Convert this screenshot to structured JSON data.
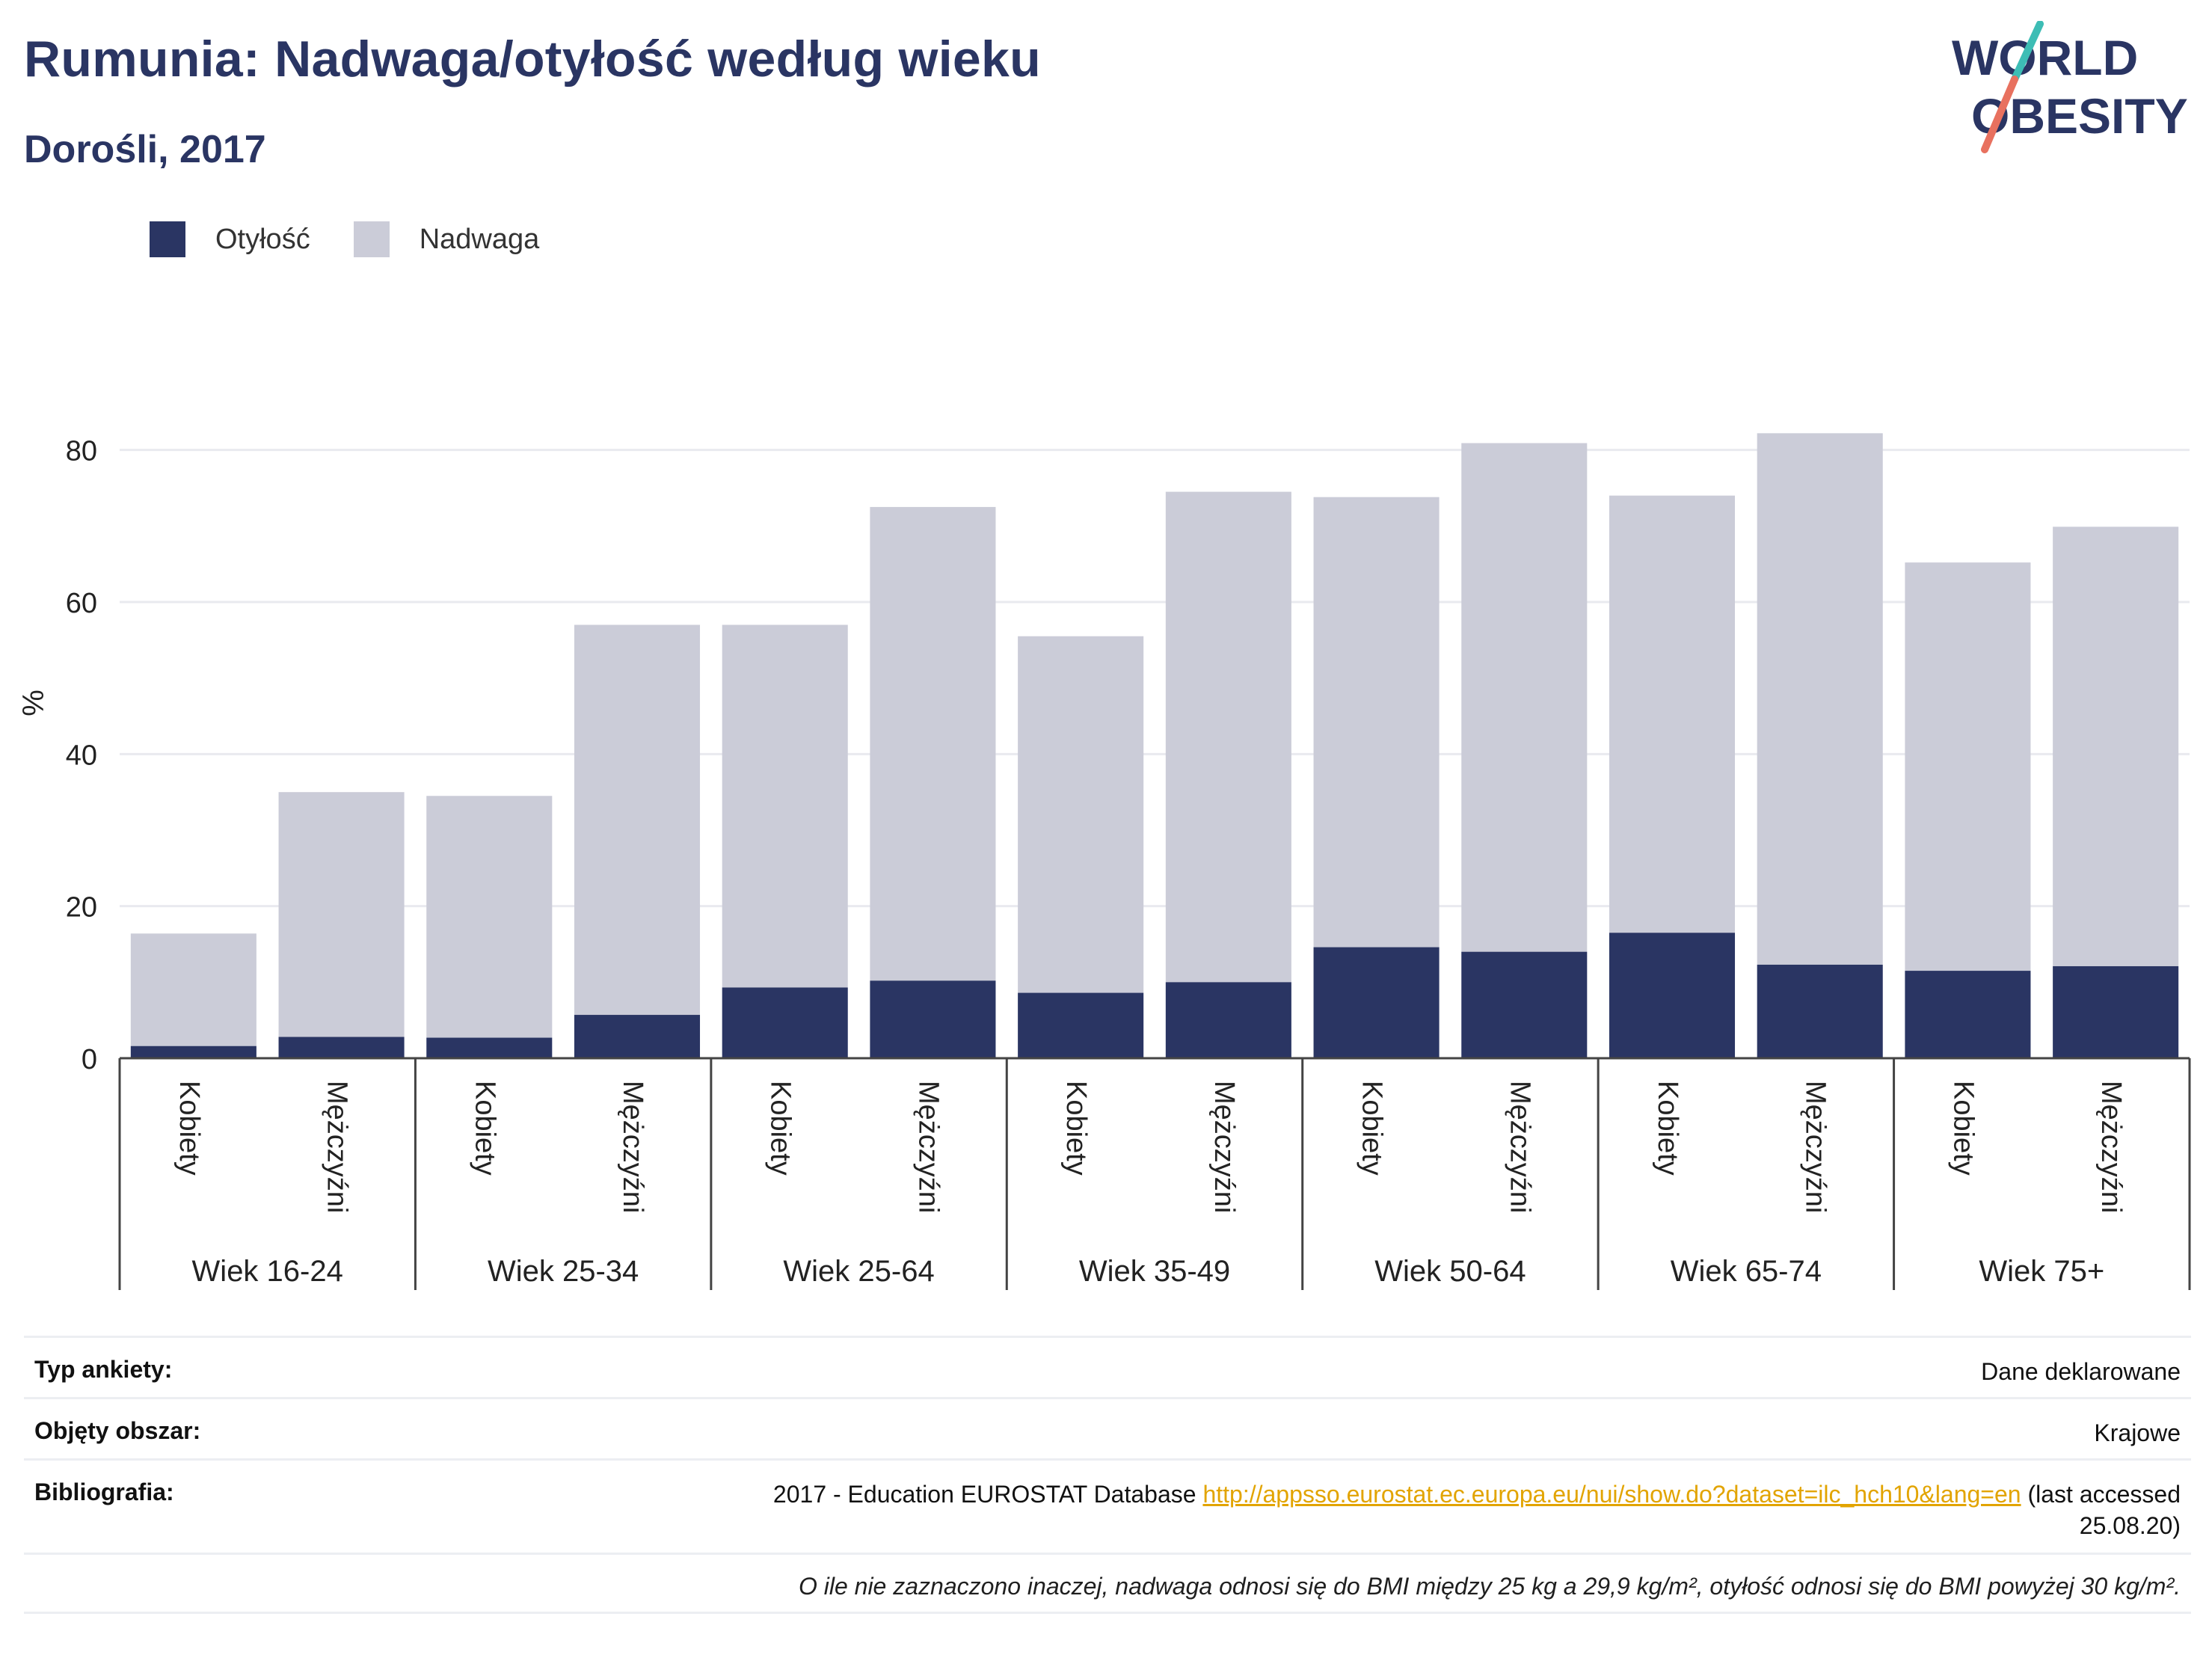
{
  "title": "Rumunia: Nadwaga/otyłość według wieku",
  "subtitle": "Dorośli, 2017",
  "logo": {
    "line1": "WORLD",
    "line2": "OBESITY",
    "colors": {
      "text": "#2a3563",
      "slash_teal": "#3dbdb5",
      "slash_coral": "#e8715f"
    }
  },
  "chart_data": {
    "type": "bar",
    "stacked": true,
    "ylabel": "%",
    "ylim": [
      0,
      90
    ],
    "yticks": [
      0,
      20,
      40,
      60,
      80
    ],
    "grid": true,
    "legend_position": "top-left",
    "groups": [
      "Wiek 16-24",
      "Wiek 25-34",
      "Wiek 25-64",
      "Wiek 35-49",
      "Wiek 50-64",
      "Wiek 65-74",
      "Wiek 75+"
    ],
    "subcategories": [
      "Kobiety",
      "Mężczyźni"
    ],
    "categories": [
      "Kobiety",
      "Mężczyźni",
      "Kobiety",
      "Mężczyźni",
      "Kobiety",
      "Mężczyźni",
      "Kobiety",
      "Mężczyźni",
      "Kobiety",
      "Mężczyźni",
      "Kobiety",
      "Mężczyźni",
      "Kobiety",
      "Mężczyźni"
    ],
    "series": [
      {
        "name": "Otyłość",
        "color": "#2a3563",
        "values": [
          1.6,
          2.8,
          2.7,
          5.7,
          9.3,
          10.2,
          8.6,
          10.0,
          14.6,
          14.0,
          16.5,
          12.3,
          11.5,
          12.1
        ]
      },
      {
        "name": "Nadwaga",
        "color": "#cbccd8",
        "values": [
          14.8,
          32.2,
          31.8,
          51.3,
          47.7,
          62.3,
          46.9,
          64.5,
          59.2,
          66.9,
          57.5,
          69.9,
          53.7,
          57.8
        ]
      }
    ]
  },
  "info": {
    "survey_label": "Typ ankiety:",
    "survey_value": "Dane deklarowane",
    "area_label": "Objęty obszar:",
    "area_value": "Krajowe",
    "bib_label": "Bibliografia:",
    "bib_text": "2017 - Education EUROSTAT Database",
    "bib_link": "http://appsso.eurostat.ec.europa.eu/nui/show.do?dataset=ilc_hch10&lang=en",
    "bib_accessed": "(last accessed",
    "bib_date": "25.08.20)",
    "note": "O ile nie zaznaczono inaczej, nadwaga odnosi się do BMI między 25 kg a 29,9 kg/m², otyłość odnosi się do BMI powyżej 30 kg/m²."
  }
}
